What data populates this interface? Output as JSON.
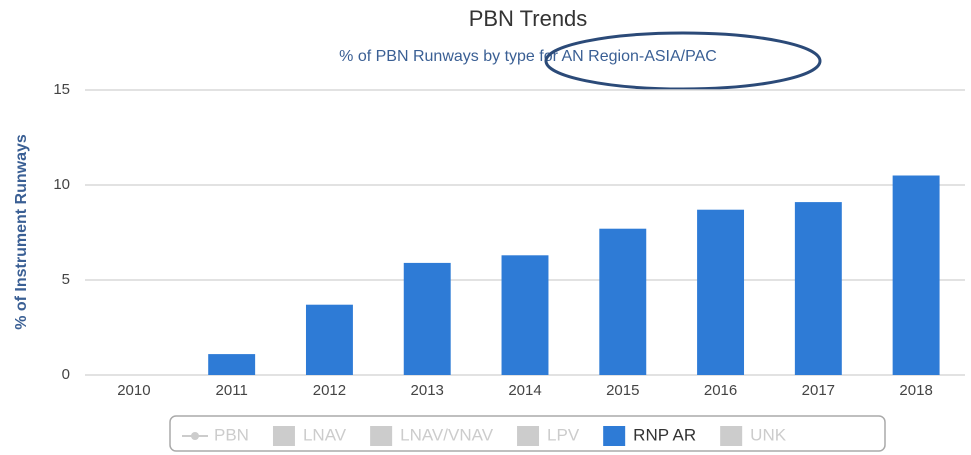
{
  "chart_data": {
    "type": "bar",
    "title": "PBN Trends",
    "subtitle": "% of PBN Runways by type for AN Region-ASIA/PAC",
    "y_label": "% of Instrument Runways",
    "categories": [
      "2010",
      "2011",
      "2012",
      "2013",
      "2014",
      "2015",
      "2016",
      "2017",
      "2018"
    ],
    "series": [
      {
        "name": "RNP AR",
        "color": "#2e7bd6",
        "values": [
          0,
          1.1,
          3.7,
          5.9,
          6.3,
          7.7,
          8.7,
          9.1,
          10.5
        ]
      }
    ],
    "ylim": [
      0,
      15
    ],
    "yticks": [
      0,
      5,
      10,
      15
    ],
    "grid": true,
    "legend": [
      {
        "name": "PBN",
        "marker": "line",
        "active": false
      },
      {
        "name": "LNAV",
        "marker": "square",
        "active": false
      },
      {
        "name": "LNAV/VNAV",
        "marker": "square",
        "active": false
      },
      {
        "name": "LPV",
        "marker": "square",
        "active": false
      },
      {
        "series": 0,
        "marker": "square",
        "active": true
      },
      {
        "name": "UNK",
        "marker": "square",
        "active": false
      }
    ],
    "legend_position": "bottom"
  }
}
